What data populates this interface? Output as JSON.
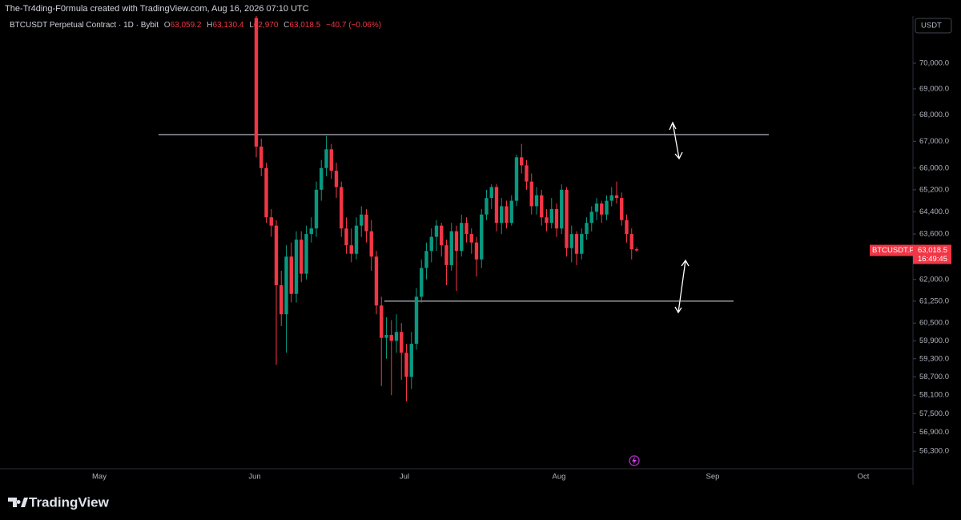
{
  "header": "The-Tr4ding-F0rmula created with TradingView.com, Aug 16, 2026 07:10 UTC",
  "chart_data": {
    "type": "candlestick",
    "legend": {
      "symbol": "BTCUSDT Perpetual Contract · 1D · Bybit",
      "fields": [
        {
          "key": "O",
          "value": "63,059.2"
        },
        {
          "key": "H",
          "value": "63,130.4"
        },
        {
          "key": "L",
          "value": "62,970"
        },
        {
          "key": "C",
          "value": "63,018.5"
        }
      ],
      "change": "−40.7 (−0.06%)"
    },
    "currency": "USDT",
    "x_labels": [
      "May",
      "Jun",
      "Jul",
      "Aug",
      "Sep",
      "Oct"
    ],
    "log_scale": true,
    "ylim": [
      55750,
      71880
    ],
    "yticks": [
      {
        "value": 70000,
        "label": "70,000.0"
      },
      {
        "value": 69000,
        "label": "69,000.0"
      },
      {
        "value": 68000,
        "label": "68,000.0"
      },
      {
        "value": 67000,
        "label": "67,000.0"
      },
      {
        "value": 66000,
        "label": "66,000.0"
      },
      {
        "value": 65200,
        "label": "65,200.0"
      },
      {
        "value": 64400,
        "label": "64,400.0"
      },
      {
        "value": 63600,
        "label": "63,600.0"
      },
      {
        "value": 62000,
        "label": "62,000.0"
      },
      {
        "value": 61250,
        "label": "61,250.0"
      },
      {
        "value": 60500,
        "label": "60,500.0"
      },
      {
        "value": 59900,
        "label": "59,900.0"
      },
      {
        "value": 59300,
        "label": "59,300.0"
      },
      {
        "value": 58700,
        "label": "58,700.0"
      },
      {
        "value": 58100,
        "label": "58,100.0"
      },
      {
        "value": 57500,
        "label": "57,500.0"
      },
      {
        "value": 56900,
        "label": "56,900.0"
      },
      {
        "value": 56300,
        "label": "56,300.0"
      }
    ],
    "up_color": "#089981",
    "down_color": "#f23645",
    "candles": [
      [
        71800,
        71880,
        66400,
        66800
      ],
      [
        66800,
        67100,
        65700,
        66000
      ],
      [
        66000,
        66200,
        64000,
        64200
      ],
      [
        64200,
        64500,
        63500,
        63900
      ],
      [
        63900,
        64100,
        59100,
        61800
      ],
      [
        61800,
        62300,
        60400,
        60800
      ],
      [
        60800,
        63200,
        59500,
        62800
      ],
      [
        62800,
        63300,
        61200,
        61500
      ],
      [
        61500,
        63700,
        61200,
        63400
      ],
      [
        63400,
        63700,
        61900,
        62200
      ],
      [
        62200,
        63900,
        62000,
        63600
      ],
      [
        63600,
        64200,
        63300,
        63800
      ],
      [
        63800,
        65500,
        63500,
        65200
      ],
      [
        65200,
        66300,
        64800,
        66000
      ],
      [
        66000,
        67200,
        65700,
        66700
      ],
      [
        66700,
        66900,
        65600,
        65900
      ],
      [
        65900,
        66200,
        64900,
        65300
      ],
      [
        65300,
        65500,
        63500,
        63800
      ],
      [
        63800,
        64200,
        62900,
        63200
      ],
      [
        63200,
        63800,
        62600,
        62900
      ],
      [
        62900,
        64200,
        62700,
        63900
      ],
      [
        63900,
        64600,
        63500,
        64300
      ],
      [
        64300,
        64500,
        63300,
        63700
      ],
      [
        63700,
        64100,
        62300,
        62800
      ],
      [
        62800,
        63000,
        60800,
        61100
      ],
      [
        61100,
        61400,
        58400,
        60000
      ],
      [
        60000,
        60700,
        59300,
        60100
      ],
      [
        60100,
        60600,
        58100,
        59900
      ],
      [
        59900,
        60800,
        59500,
        60200
      ],
      [
        60200,
        60500,
        58600,
        59500
      ],
      [
        59500,
        59800,
        57900,
        58700
      ],
      [
        58700,
        60200,
        58300,
        59800
      ],
      [
        59800,
        61700,
        59600,
        61400
      ],
      [
        61400,
        62700,
        61200,
        62400
      ],
      [
        62400,
        63300,
        62000,
        63000
      ],
      [
        63000,
        63800,
        62600,
        63500
      ],
      [
        63500,
        64100,
        63000,
        63900
      ],
      [
        63900,
        64000,
        62800,
        63200
      ],
      [
        63200,
        63400,
        61800,
        62500
      ],
      [
        62500,
        64000,
        62300,
        63700
      ],
      [
        63700,
        63900,
        61600,
        63000
      ],
      [
        63000,
        64300,
        62800,
        64000
      ],
      [
        64000,
        64200,
        63300,
        63600
      ],
      [
        63600,
        63800,
        62900,
        63300
      ],
      [
        63300,
        63500,
        62100,
        62700
      ],
      [
        62700,
        64500,
        62400,
        64300
      ],
      [
        64300,
        65200,
        64100,
        64900
      ],
      [
        64900,
        65400,
        64500,
        65300
      ],
      [
        65300,
        65400,
        63700,
        64000
      ],
      [
        64000,
        64900,
        63600,
        64600
      ],
      [
        64600,
        64800,
        63800,
        64000
      ],
      [
        64000,
        65000,
        63900,
        64800
      ],
      [
        64800,
        66500,
        64600,
        66400
      ],
      [
        66400,
        66900,
        65800,
        66100
      ],
      [
        66100,
        66300,
        65200,
        65500
      ],
      [
        65500,
        65800,
        64300,
        64600
      ],
      [
        64600,
        65300,
        64300,
        65000
      ],
      [
        65000,
        65200,
        63900,
        64200
      ],
      [
        64200,
        64500,
        63700,
        64000
      ],
      [
        64000,
        64900,
        63800,
        64500
      ],
      [
        64500,
        64700,
        63500,
        63800
      ],
      [
        63800,
        65400,
        63600,
        65200
      ],
      [
        65200,
        65300,
        62800,
        63100
      ],
      [
        63100,
        63900,
        62600,
        63600
      ],
      [
        63600,
        63700,
        62500,
        62900
      ],
      [
        62900,
        63800,
        62700,
        63600
      ],
      [
        63600,
        64200,
        63400,
        64000
      ],
      [
        64000,
        64600,
        63700,
        64400
      ],
      [
        64400,
        64900,
        64100,
        64700
      ],
      [
        64700,
        64800,
        64000,
        64300
      ],
      [
        64300,
        65000,
        64100,
        64800
      ],
      [
        64800,
        65300,
        64600,
        65000
      ],
      [
        65000,
        65500,
        64700,
        64900
      ],
      [
        64900,
        65100,
        63900,
        64100
      ],
      [
        64100,
        64300,
        63300,
        63600
      ],
      [
        63600,
        63800,
        62700,
        63059.2
      ],
      [
        63059.2,
        63130.4,
        62970,
        63018.5
      ]
    ],
    "levels": [
      {
        "value": 67250
      },
      {
        "value": 61250
      }
    ],
    "price_label": {
      "symbol": "BTCUSDT.P",
      "value": 63018.5,
      "value_label": "63,018.5",
      "countdown": "16:49:45"
    }
  },
  "logo": "TradingView"
}
